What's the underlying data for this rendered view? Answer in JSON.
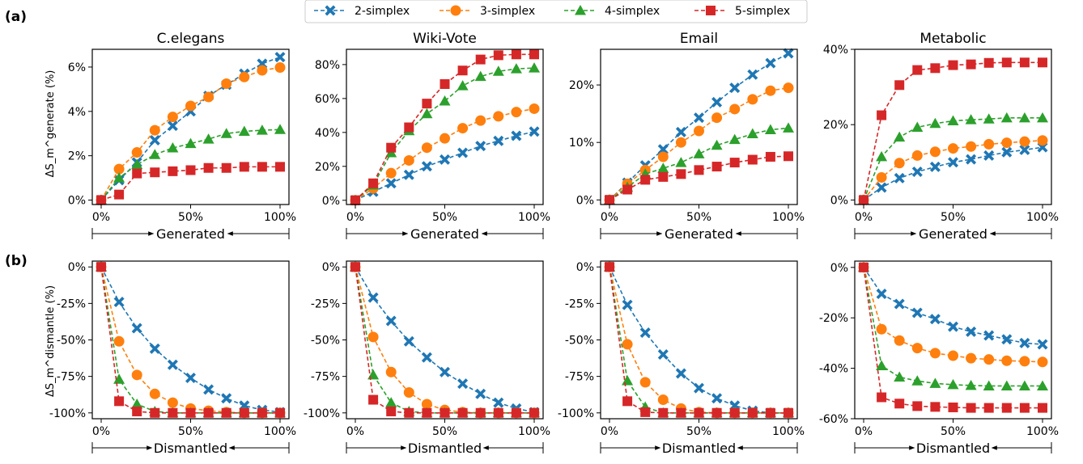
{
  "legend": {
    "placement": "top-center",
    "entries": [
      {
        "label": "2-simplex",
        "color": "#1f77b4",
        "marker": "x-marker"
      },
      {
        "label": "3-simplex",
        "color": "#ff7f0e",
        "marker": "circle-marker"
      },
      {
        "label": "4-simplex",
        "color": "#2ca02c",
        "marker": "triangle-marker"
      },
      {
        "label": "5-simplex",
        "color": "#d62728",
        "marker": "square-marker"
      }
    ]
  },
  "rows": [
    {
      "label": "(a)",
      "ylabel": "ΔS_m^generate (%)",
      "xarrow_label": "Generated"
    },
    {
      "label": "(b)",
      "ylabel": "ΔS_m^dismantle (%)",
      "xarrow_label": "Dismantled"
    }
  ],
  "x_tick_labels": [
    "0%",
    "50%",
    "100%"
  ],
  "chart_data": [
    {
      "type": "line",
      "row": 0,
      "col": 0,
      "title": "C.elegans",
      "x": [
        0,
        10,
        20,
        30,
        40,
        50,
        60,
        70,
        80,
        90,
        100
      ],
      "ylim": [
        -0.2,
        6.8
      ],
      "yticks": [
        0,
        2,
        4,
        6
      ],
      "ytick_labels": [
        "0%",
        "2%",
        "4%",
        "6%"
      ],
      "xlabel": "Generated",
      "series": [
        {
          "name": "2-simplex",
          "values": [
            0,
            0.9,
            1.7,
            2.7,
            3.35,
            4.0,
            4.7,
            5.2,
            5.7,
            6.15,
            6.45
          ]
        },
        {
          "name": "3-simplex",
          "values": [
            0,
            1.4,
            2.15,
            3.15,
            3.75,
            4.25,
            4.65,
            5.25,
            5.55,
            5.85,
            5.98
          ]
        },
        {
          "name": "4-simplex",
          "values": [
            0,
            1.0,
            1.6,
            2.05,
            2.35,
            2.55,
            2.75,
            3.0,
            3.1,
            3.15,
            3.18
          ]
        },
        {
          "name": "5-simplex",
          "values": [
            0,
            0.25,
            1.2,
            1.25,
            1.3,
            1.35,
            1.45,
            1.45,
            1.5,
            1.5,
            1.5
          ]
        }
      ]
    },
    {
      "type": "line",
      "row": 0,
      "col": 1,
      "title": "Wiki-Vote",
      "x": [
        0,
        10,
        20,
        30,
        40,
        50,
        60,
        70,
        80,
        90,
        100
      ],
      "ylim": [
        -2.5,
        89
      ],
      "yticks": [
        0,
        20,
        40,
        60,
        80
      ],
      "ytick_labels": [
        "0%",
        "20%",
        "40%",
        "60%",
        "80%"
      ],
      "xlabel": "Generated",
      "series": [
        {
          "name": "2-simplex",
          "values": [
            0,
            5,
            10,
            15,
            20,
            24,
            28,
            32,
            35,
            38,
            40.5
          ]
        },
        {
          "name": "3-simplex",
          "values": [
            0,
            7,
            16,
            23.5,
            31,
            36.5,
            42.5,
            47,
            49.5,
            52,
            54
          ]
        },
        {
          "name": "4-simplex",
          "values": [
            0,
            9,
            28,
            41,
            51,
            58.5,
            67.5,
            73,
            76,
            77.5,
            78
          ]
        },
        {
          "name": "5-simplex",
          "values": [
            0,
            10,
            31,
            43,
            57,
            68.5,
            76.5,
            83,
            85.5,
            86,
            86
          ]
        }
      ]
    },
    {
      "type": "line",
      "row": 0,
      "col": 2,
      "title": "Email",
      "x": [
        0,
        10,
        20,
        30,
        40,
        50,
        60,
        70,
        80,
        90,
        100
      ],
      "ylim": [
        -0.8,
        26.2
      ],
      "yticks": [
        0,
        10,
        20
      ],
      "ytick_labels": [
        "0%",
        "10%",
        "20%"
      ],
      "xlabel": "Generated",
      "series": [
        {
          "name": "2-simplex",
          "values": [
            0,
            3,
            6,
            8.8,
            11.8,
            14.3,
            17,
            19.5,
            21.8,
            23.8,
            25.5
          ]
        },
        {
          "name": "3-simplex",
          "values": [
            0,
            2.8,
            5.2,
            7.5,
            10,
            12,
            14.3,
            15.8,
            17.5,
            19,
            19.5
          ]
        },
        {
          "name": "4-simplex",
          "values": [
            0,
            2.2,
            4.5,
            5.5,
            6.5,
            8,
            9.5,
            10.5,
            11.5,
            12.2,
            12.5
          ]
        },
        {
          "name": "5-simplex",
          "values": [
            0,
            1.8,
            3.5,
            4,
            4.5,
            5.2,
            5.8,
            6.5,
            7,
            7.5,
            7.6
          ]
        }
      ]
    },
    {
      "type": "line",
      "row": 0,
      "col": 3,
      "title": "Metabolic",
      "x": [
        0,
        10,
        20,
        30,
        40,
        50,
        60,
        70,
        80,
        90,
        100
      ],
      "ylim": [
        -1.2,
        40
      ],
      "yticks": [
        0,
        20,
        40
      ],
      "ytick_labels": [
        "0%",
        "20%",
        "40%"
      ],
      "xlabel": "Generated",
      "series": [
        {
          "name": "2-simplex",
          "values": [
            0,
            3.3,
            5.8,
            7.5,
            8.8,
            10,
            10.8,
            11.8,
            12.7,
            13.3,
            14
          ]
        },
        {
          "name": "3-simplex",
          "values": [
            0,
            6,
            9.8,
            11.8,
            12.8,
            13.7,
            14.2,
            14.8,
            15.2,
            15.5,
            15.8
          ]
        },
        {
          "name": "4-simplex",
          "values": [
            0,
            11.5,
            16.7,
            19.3,
            20.3,
            21,
            21.3,
            21.5,
            21.8,
            21.8,
            21.8
          ]
        },
        {
          "name": "5-simplex",
          "values": [
            0,
            22.5,
            30.5,
            34.5,
            35,
            35.8,
            36,
            36.4,
            36.5,
            36.5,
            36.5
          ]
        }
      ]
    },
    {
      "type": "line",
      "row": 1,
      "col": 0,
      "title": "",
      "x": [
        0,
        10,
        20,
        30,
        40,
        50,
        60,
        70,
        80,
        90,
        100
      ],
      "ylim": [
        -104,
        4
      ],
      "yticks": [
        0,
        -25,
        -50,
        -75,
        -100
      ],
      "ytick_labels": [
        "0%",
        "-25%",
        "-50%",
        "-75%",
        "-100%"
      ],
      "xlabel": "Dismantled",
      "series": [
        {
          "name": "2-simplex",
          "values": [
            0,
            -24,
            -42,
            -56,
            -67,
            -76,
            -84,
            -90,
            -95,
            -98,
            -99.5
          ]
        },
        {
          "name": "3-simplex",
          "values": [
            0,
            -51,
            -74,
            -87,
            -93,
            -97,
            -98.5,
            -99.5,
            -100,
            -100,
            -100
          ]
        },
        {
          "name": "4-simplex",
          "values": [
            0,
            -77,
            -94,
            -99,
            -100,
            -100,
            -100,
            -100,
            -100,
            -100,
            -100
          ]
        },
        {
          "name": "5-simplex",
          "values": [
            0,
            -92,
            -99,
            -100,
            -100,
            -100,
            -100,
            -100,
            -100,
            -100,
            -100
          ]
        }
      ]
    },
    {
      "type": "line",
      "row": 1,
      "col": 1,
      "title": "",
      "x": [
        0,
        10,
        20,
        30,
        40,
        50,
        60,
        70,
        80,
        90,
        100
      ],
      "ylim": [
        -104,
        4
      ],
      "yticks": [
        0,
        -25,
        -50,
        -75,
        -100
      ],
      "ytick_labels": [
        "0%",
        "-25%",
        "-50%",
        "-75%",
        "-100%"
      ],
      "xlabel": "Dismantled",
      "series": [
        {
          "name": "2-simplex",
          "values": [
            0,
            -21,
            -37,
            -51,
            -62,
            -72,
            -80,
            -87,
            -93,
            -97,
            -99.5
          ]
        },
        {
          "name": "3-simplex",
          "values": [
            0,
            -48,
            -72,
            -86,
            -94,
            -98,
            -99.5,
            -100,
            -100,
            -100,
            -100
          ]
        },
        {
          "name": "4-simplex",
          "values": [
            0,
            -74,
            -93,
            -99,
            -100,
            -100,
            -100,
            -100,
            -100,
            -100,
            -100
          ]
        },
        {
          "name": "5-simplex",
          "values": [
            0,
            -91,
            -99,
            -100,
            -100,
            -100,
            -100,
            -100,
            -100,
            -100,
            -100
          ]
        }
      ]
    },
    {
      "type": "line",
      "row": 1,
      "col": 2,
      "title": "",
      "x": [
        0,
        10,
        20,
        30,
        40,
        50,
        60,
        70,
        80,
        90,
        100
      ],
      "ylim": [
        -104,
        4
      ],
      "yticks": [
        0,
        -25,
        -50,
        -75,
        -100
      ],
      "ytick_labels": [
        "0%",
        "-25%",
        "-50%",
        "-75%",
        "-100%"
      ],
      "xlabel": "Dismantled",
      "series": [
        {
          "name": "2-simplex",
          "values": [
            0,
            -26,
            -45,
            -60,
            -73,
            -83,
            -90,
            -95,
            -98.5,
            -100,
            -100
          ]
        },
        {
          "name": "3-simplex",
          "values": [
            0,
            -53,
            -79,
            -91,
            -97,
            -99.5,
            -100,
            -100,
            -100,
            -100,
            -100
          ]
        },
        {
          "name": "4-simplex",
          "values": [
            0,
            -78,
            -96,
            -100,
            -100,
            -100,
            -100,
            -100,
            -100,
            -100,
            -100
          ]
        },
        {
          "name": "5-simplex",
          "values": [
            0,
            -92,
            -99.5,
            -100,
            -100,
            -100,
            -100,
            -100,
            -100,
            -100,
            -100
          ]
        }
      ]
    },
    {
      "type": "line",
      "row": 1,
      "col": 3,
      "title": "",
      "x": [
        0,
        10,
        20,
        30,
        40,
        50,
        60,
        70,
        80,
        90,
        100
      ],
      "ylim": [
        -60,
        2.5
      ],
      "yticks": [
        0,
        -20,
        -40,
        -60
      ],
      "ytick_labels": [
        "0%",
        "-20%",
        "-40%",
        "-60%"
      ],
      "xlabel": "Dismantled",
      "series": [
        {
          "name": "2-simplex",
          "values": [
            0,
            -10.5,
            -14.5,
            -18,
            -20.5,
            -23.5,
            -25.5,
            -27,
            -28.5,
            -30,
            -30.5
          ]
        },
        {
          "name": "3-simplex",
          "values": [
            0,
            -24.5,
            -29,
            -32,
            -34,
            -35,
            -36,
            -36.5,
            -37,
            -37.2,
            -37.5
          ]
        },
        {
          "name": "4-simplex",
          "values": [
            0,
            -39,
            -43.5,
            -45,
            -46,
            -46.5,
            -46.8,
            -47,
            -47,
            -47,
            -47
          ]
        },
        {
          "name": "5-simplex",
          "values": [
            0,
            -51.5,
            -54,
            -55,
            -55.3,
            -55.5,
            -55.7,
            -55.7,
            -55.7,
            -55.7,
            -55.7
          ]
        }
      ]
    }
  ]
}
